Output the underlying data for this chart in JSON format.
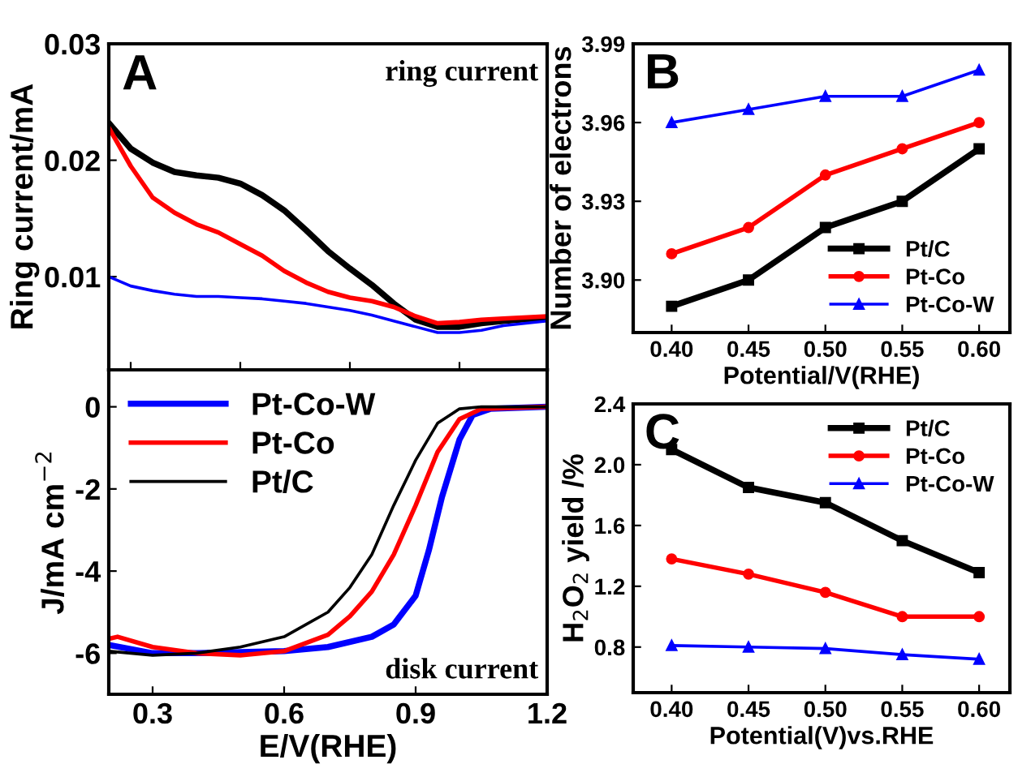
{
  "chart_data": [
    {
      "type": "line",
      "ylabel": "Ring current/mA",
      "annotations": [
        "A",
        "ring current"
      ],
      "xlim": [
        0.2,
        1.2
      ],
      "ylim": [
        0.002,
        0.03
      ],
      "yticks": [
        0.01,
        0.02,
        0.03
      ],
      "tick_labels": "y",
      "grid": false,
      "legend": false,
      "marker": "none",
      "line_style": "solid",
      "x": [
        0.2,
        0.25,
        0.3,
        0.35,
        0.4,
        0.45,
        0.5,
        0.55,
        0.6,
        0.65,
        0.7,
        0.75,
        0.8,
        0.85,
        0.9,
        0.95,
        1.0,
        1.05,
        1.1,
        1.2
      ],
      "series": [
        {
          "color": "#000000",
          "values": [
            0.0232,
            0.021,
            0.0198,
            0.019,
            0.0187,
            0.0185,
            0.018,
            0.017,
            0.0157,
            0.014,
            0.0122,
            0.0107,
            0.0093,
            0.0077,
            0.0063,
            0.0057,
            0.0057,
            0.006,
            0.0062,
            0.0065
          ]
        },
        {
          "color": "#ff0000",
          "values": [
            0.0228,
            0.0195,
            0.0168,
            0.0155,
            0.0145,
            0.0138,
            0.0128,
            0.0118,
            0.0105,
            0.0095,
            0.0087,
            0.0082,
            0.0079,
            0.0074,
            0.0066,
            0.006,
            0.0061,
            0.0063,
            0.0064,
            0.0066
          ]
        },
        {
          "color": "#0000ff",
          "values": [
            0.01,
            0.0092,
            0.0088,
            0.0085,
            0.0083,
            0.0083,
            0.0082,
            0.0081,
            0.0079,
            0.0077,
            0.0074,
            0.0071,
            0.0067,
            0.0062,
            0.0057,
            0.0052,
            0.0052,
            0.0054,
            0.0058,
            0.0062
          ]
        }
      ]
    },
    {
      "type": "line",
      "xlabel": "E/V(RHE)",
      "ylabel": "J/mA cm$^{−2}$",
      "annotations": [
        "disk current"
      ],
      "xlim": [
        0.2,
        1.2
      ],
      "ylim": [
        -7,
        0.9
      ],
      "xticks": [
        0.3,
        0.6,
        0.9,
        1.2
      ],
      "yticks": [
        0,
        -2,
        -4,
        -6
      ],
      "grid": false,
      "legend": "top left",
      "marker": "none",
      "line_style": "solid",
      "series": [
        {
          "name": "Pt-Co-W",
          "color": "#0000ff",
          "x": [
            0.2,
            0.3,
            0.4,
            0.6,
            0.7,
            0.8,
            0.85,
            0.9,
            0.93,
            0.96,
            1.0,
            1.03,
            1.07,
            1.2
          ],
          "values": [
            -5.8,
            -6.0,
            -6.0,
            -5.95,
            -5.85,
            -5.6,
            -5.3,
            -4.6,
            -3.5,
            -2.2,
            -0.8,
            -0.2,
            -0.05,
            0
          ]
        },
        {
          "name": "Pt-Co",
          "color": "#ff0000",
          "x": [
            0.2,
            0.22,
            0.3,
            0.4,
            0.5,
            0.6,
            0.7,
            0.75,
            0.8,
            0.85,
            0.9,
            0.95,
            1.0,
            1.05,
            1.2
          ],
          "values": [
            -5.65,
            -5.6,
            -5.85,
            -6.0,
            -6.05,
            -5.95,
            -5.55,
            -5.1,
            -4.5,
            -3.6,
            -2.4,
            -1.1,
            -0.3,
            -0.05,
            0
          ]
        },
        {
          "name": "Pt/C",
          "color": "#000000",
          "x": [
            0.2,
            0.3,
            0.4,
            0.5,
            0.6,
            0.7,
            0.75,
            0.8,
            0.85,
            0.9,
            0.95,
            1.0,
            1.05,
            1.2
          ],
          "values": [
            -5.95,
            -6.05,
            -6.0,
            -5.85,
            -5.6,
            -5.0,
            -4.4,
            -3.6,
            -2.4,
            -1.3,
            -0.4,
            -0.05,
            0,
            0
          ]
        }
      ]
    },
    {
      "type": "line",
      "xlabel": "Potential/V(RHE)",
      "ylabel": "Number of electrons",
      "annotations": [
        "B"
      ],
      "xlim": [
        0.375,
        0.62
      ],
      "ylim": [
        3.88,
        3.99
      ],
      "xticks": [
        {
          "value": 0.4,
          "label": "0.40"
        },
        0.45,
        {
          "value": 0.5,
          "label": "0.50"
        },
        0.55,
        {
          "value": 0.6,
          "label": "0.60"
        }
      ],
      "yticks": [
        {
          "value": 3.9,
          "label": "3.90"
        },
        3.93,
        3.96,
        3.99
      ],
      "grid": false,
      "legend": "bottom right",
      "line_style": "solid",
      "x": [
        0.4,
        0.45,
        0.5,
        0.55,
        0.6
      ],
      "series": [
        {
          "name": "Pt/C",
          "color": "#000000",
          "marker": "square",
          "values": [
            3.89,
            3.9,
            3.92,
            3.93,
            3.95
          ]
        },
        {
          "name": "Pt-Co",
          "color": "#ff0000",
          "marker": "circle",
          "values": [
            3.91,
            3.92,
            3.94,
            3.95,
            3.96
          ]
        },
        {
          "name": "Pt-Co-W",
          "color": "#0000ff",
          "marker": "triangle",
          "values": [
            3.96,
            3.965,
            3.97,
            3.97,
            3.98
          ]
        }
      ]
    },
    {
      "type": "line",
      "xlabel": "Potential(V)vs.RHE",
      "ylabel": "H$_{2}$O$_{2}$ yield /%",
      "annotations": [
        "C"
      ],
      "xlim": [
        0.375,
        0.62
      ],
      "ylim": [
        0.5,
        2.4
      ],
      "xticks": [
        {
          "value": 0.4,
          "label": "0.40"
        },
        0.45,
        {
          "value": 0.5,
          "label": "0.50"
        },
        0.55,
        {
          "value": 0.6,
          "label": "0.60"
        }
      ],
      "yticks": [
        0.8,
        1.2,
        1.6,
        {
          "value": 2.0,
          "label": "2.0"
        },
        2.4
      ],
      "grid": false,
      "legend": "top right",
      "line_style": "solid",
      "x": [
        0.4,
        0.45,
        0.5,
        0.55,
        0.6
      ],
      "series": [
        {
          "name": "Pt/C",
          "color": "#000000",
          "marker": "square",
          "values": [
            2.1,
            1.85,
            1.75,
            1.5,
            1.29
          ]
        },
        {
          "name": "Pt-Co",
          "color": "#ff0000",
          "marker": "circle",
          "values": [
            1.38,
            1.28,
            1.16,
            1.0,
            1.0
          ]
        },
        {
          "name": "Pt-Co-W",
          "color": "#0000ff",
          "marker": "triangle",
          "values": [
            0.81,
            0.8,
            0.79,
            0.75,
            0.72
          ]
        }
      ]
    }
  ]
}
